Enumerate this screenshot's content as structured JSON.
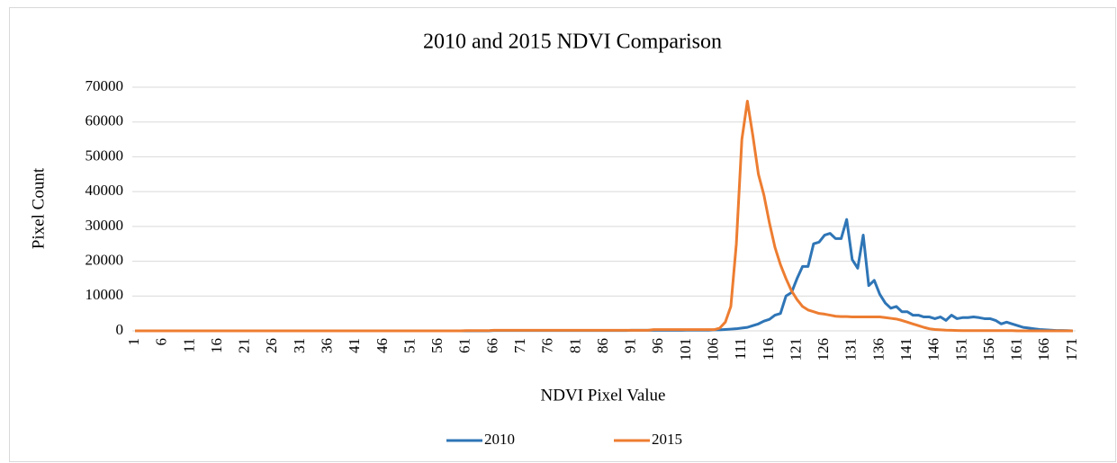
{
  "chart_data": {
    "type": "line",
    "title": "2010 and 2015 NDVI Comparison",
    "x_label": "NDVI Pixel Value",
    "y_label": "Pixel Count",
    "categories": [
      1,
      null,
      null,
      null,
      null,
      6,
      null,
      null,
      null,
      null,
      11,
      null,
      null,
      null,
      null,
      16,
      null,
      null,
      null,
      null,
      21,
      null,
      null,
      null,
      null,
      26,
      null,
      null,
      null,
      null,
      31,
      null,
      null,
      null,
      null,
      36,
      null,
      null,
      null,
      null,
      41,
      null,
      null,
      null,
      null,
      46,
      null,
      null,
      null,
      null,
      51,
      null,
      null,
      null,
      null,
      56,
      null,
      null,
      null,
      null,
      61,
      null,
      null,
      null,
      null,
      66,
      null,
      null,
      null,
      null,
      71,
      null,
      null,
      null,
      null,
      76,
      null,
      null,
      null,
      null,
      81,
      null,
      null,
      null,
      null,
      86,
      null,
      null,
      null,
      null,
      91,
      null,
      null,
      null,
      null,
      96,
      null,
      null,
      null,
      null,
      101,
      null,
      null,
      null,
      null,
      106,
      null,
      null,
      null,
      null,
      111,
      null,
      null,
      null,
      null,
      116,
      null,
      null,
      null,
      null,
      121,
      null,
      null,
      null,
      null,
      126,
      null,
      null,
      null,
      null,
      131,
      null,
      null,
      null,
      null,
      136,
      null,
      null,
      null,
      null,
      141,
      null,
      null,
      null,
      null,
      146,
      null,
      null,
      null,
      null,
      151,
      null,
      null,
      null,
      null,
      156,
      null,
      null,
      null,
      null,
      161,
      null,
      null,
      null,
      null,
      166,
      null,
      null,
      null,
      null,
      171
    ],
    "series": [
      {
        "name": "2010",
        "color": "#2e75b6",
        "values": [
          0,
          0,
          0,
          0,
          0,
          0,
          0,
          0,
          0,
          0,
          0,
          0,
          0,
          0,
          0,
          0,
          0,
          0,
          0,
          0,
          0,
          0,
          0,
          0,
          0,
          0,
          0,
          0,
          0,
          0,
          0,
          0,
          0,
          0,
          0,
          0,
          0,
          0,
          0,
          0,
          0,
          0,
          0,
          0,
          0,
          0,
          0,
          0,
          0,
          0,
          0,
          0,
          0,
          0,
          0,
          0,
          0,
          0,
          0,
          0,
          0,
          0,
          0,
          0,
          0,
          100,
          100,
          100,
          100,
          100,
          100,
          100,
          100,
          100,
          100,
          100,
          100,
          100,
          100,
          100,
          100,
          100,
          100,
          100,
          100,
          100,
          100,
          100,
          100,
          100,
          150,
          150,
          150,
          150,
          150,
          150,
          150,
          150,
          150,
          150,
          200,
          200,
          200,
          200,
          200,
          300,
          300,
          400,
          500,
          600,
          800,
          1000,
          1500,
          2000,
          2800,
          3300,
          4500,
          5000,
          10000,
          11000,
          15000,
          18500,
          18500,
          25000,
          25500,
          27500,
          28000,
          26500,
          26500,
          32000,
          20500,
          18000,
          27500,
          13000,
          14500,
          10500,
          8000,
          6500,
          7000,
          5500,
          5500,
          4500,
          4500,
          4000,
          4000,
          3500,
          4000,
          3000,
          4500,
          3500,
          3800,
          3800,
          4000,
          3800,
          3500,
          3500,
          3000,
          2000,
          2500,
          2000,
          1500,
          1000,
          800,
          600,
          400,
          300,
          200,
          100,
          100,
          50,
          0
        ]
      },
      {
        "name": "2015",
        "color": "#ed7d31",
        "values": [
          0,
          0,
          0,
          0,
          0,
          0,
          0,
          0,
          0,
          0,
          0,
          0,
          0,
          0,
          0,
          0,
          0,
          0,
          0,
          0,
          0,
          0,
          0,
          0,
          0,
          0,
          0,
          0,
          0,
          0,
          0,
          0,
          0,
          0,
          0,
          0,
          0,
          0,
          0,
          0,
          0,
          0,
          0,
          0,
          0,
          0,
          0,
          0,
          0,
          0,
          0,
          0,
          0,
          0,
          0,
          0,
          0,
          0,
          0,
          0,
          50,
          50,
          50,
          50,
          50,
          150,
          150,
          150,
          150,
          150,
          150,
          150,
          150,
          150,
          150,
          150,
          150,
          150,
          150,
          150,
          150,
          150,
          150,
          150,
          150,
          150,
          150,
          150,
          150,
          150,
          150,
          150,
          150,
          150,
          350,
          350,
          350,
          350,
          350,
          350,
          350,
          350,
          350,
          350,
          350,
          350,
          800,
          2500,
          7000,
          25000,
          55000,
          66000,
          56000,
          45000,
          39000,
          31000,
          24000,
          19000,
          15000,
          11500,
          9000,
          7000,
          6000,
          5500,
          5000,
          4800,
          4500,
          4200,
          4100,
          4100,
          4000,
          4000,
          4000,
          4000,
          4000,
          4000,
          3800,
          3600,
          3400,
          3000,
          2500,
          2000,
          1500,
          1000,
          600,
          400,
          300,
          200,
          150,
          100,
          50,
          50,
          50,
          50,
          50,
          50,
          50,
          50,
          50,
          50,
          0,
          0,
          0,
          0,
          0,
          0,
          0,
          0,
          0,
          0,
          0
        ]
      }
    ],
    "ylim": [
      0,
      70000
    ],
    "yticks": [
      0,
      10000,
      20000,
      30000,
      40000,
      50000,
      60000,
      70000
    ],
    "grid": true,
    "legend": "bottom"
  }
}
